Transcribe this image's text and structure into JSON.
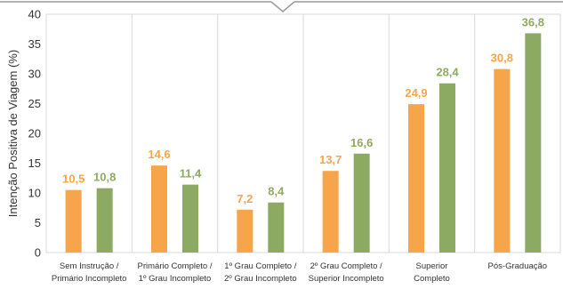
{
  "chart_data": {
    "type": "bar",
    "title": "",
    "xlabel": "",
    "ylabel": "Intenção Positiva de Viagem (%)",
    "ylim": [
      0,
      40
    ],
    "yticks": [
      0,
      5,
      10,
      15,
      20,
      25,
      30,
      35,
      40
    ],
    "grid": "vertical category separators",
    "legend": "none",
    "categories": [
      [
        "Sem Instrução /",
        "Primário Incompleto"
      ],
      [
        "Primário Completo /",
        "1º Grau Incompleto"
      ],
      [
        "1º Grau Completo /",
        "2º Grau Incompleto"
      ],
      [
        "2º Grau Completo /",
        "Superior Incompleto"
      ],
      [
        "Superior",
        "Completo"
      ],
      [
        "Pós-Graduação"
      ]
    ],
    "series": [
      {
        "values": [
          10.5,
          14.6,
          7.2,
          13.7,
          24.9,
          30.8
        ],
        "labels": [
          "10,5",
          "14,6",
          "7,2",
          "13,7",
          "24,9",
          "30,8"
        ],
        "color": "#F7A54A"
      },
      {
        "values": [
          10.8,
          11.4,
          8.4,
          16.6,
          28.4,
          36.8
        ],
        "labels": [
          "10,8",
          "11,4",
          "8,4",
          "16,6",
          "28,4",
          "36,8"
        ],
        "color": "#8DAA63"
      }
    ]
  }
}
